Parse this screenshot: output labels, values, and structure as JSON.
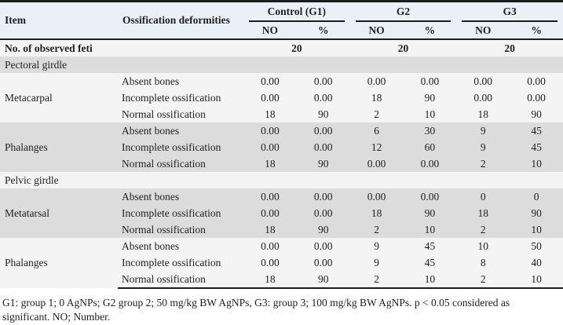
{
  "table": {
    "col_headers": {
      "item": "Item",
      "deformities": "Ossification deformities",
      "groups": [
        {
          "label": "Control (G1)",
          "sub": [
            "NO",
            "%"
          ]
        },
        {
          "label": "G2",
          "sub": [
            "NO",
            "%"
          ]
        },
        {
          "label": "G3",
          "sub": [
            "NO",
            "%"
          ]
        }
      ]
    },
    "observed_row": {
      "label": "No. of observed feti",
      "values": [
        "20",
        "20",
        "20"
      ]
    },
    "sections": [
      {
        "title": "Pectoral girdle",
        "items": [
          {
            "name": "Metacarpal",
            "rows": [
              {
                "deformity": "Absent bones",
                "values": [
                  "0.00",
                  "0.00",
                  "0.00",
                  "0.00",
                  "0.00",
                  "0.00"
                ]
              },
              {
                "deformity": "Incomplete ossification",
                "values": [
                  "0.00",
                  "0.00",
                  "18",
                  "90",
                  "0.00",
                  "0.00"
                ]
              },
              {
                "deformity": "Normal ossification",
                "values": [
                  "18",
                  "90",
                  "2",
                  "10",
                  "18",
                  "90"
                ]
              }
            ]
          },
          {
            "name": "Phalanges",
            "rows": [
              {
                "deformity": "Absent bones",
                "values": [
                  "0.00",
                  "0.00",
                  "6",
                  "30",
                  "9",
                  "45"
                ]
              },
              {
                "deformity": "Incomplete ossification",
                "values": [
                  "0.00",
                  "0.00",
                  "12",
                  "60",
                  "9",
                  "45"
                ]
              },
              {
                "deformity": "Normal ossification",
                "values": [
                  "18",
                  "90",
                  "0.00",
                  "0.00",
                  "2",
                  "10"
                ]
              }
            ]
          }
        ]
      },
      {
        "title": "Pelvic girdle",
        "items": [
          {
            "name": "Metatarsal",
            "rows": [
              {
                "deformity": "Absent bones",
                "values": [
                  "0.00",
                  "0.00",
                  "0.00",
                  "0.00",
                  "0",
                  "0"
                ]
              },
              {
                "deformity": "Incomplete ossification",
                "values": [
                  "0.00",
                  "0.00",
                  "18",
                  "90",
                  "18",
                  "90"
                ]
              },
              {
                "deformity": "Normal ossification",
                "values": [
                  "18",
                  "90",
                  "2",
                  "10",
                  "2",
                  "10"
                ]
              }
            ]
          },
          {
            "name": "Phalanges",
            "rows": [
              {
                "deformity": "Absent bones",
                "values": [
                  "0.00",
                  "0.00",
                  "9",
                  "45",
                  "10",
                  "50"
                ]
              },
              {
                "deformity": "Incomplete ossification",
                "values": [
                  "0.00",
                  "0.00",
                  "9",
                  "45",
                  "8",
                  "40"
                ]
              },
              {
                "deformity": "Normal ossification",
                "values": [
                  "18",
                  "90",
                  "2",
                  "10",
                  "2",
                  "10"
                ]
              }
            ]
          }
        ]
      }
    ],
    "footnote": "G1: group 1; 0 AgNPs; G2 group 2; 50 mg/kg BW AgNPs, G3: group 3; 100 mg/kg BW AgNPs. p < 0.05 considered as significant. NO; Number."
  },
  "colors": {
    "header_bg": "#e9f0f8",
    "band_gray": "#dcdcdc",
    "band_light": "#f4f4f4",
    "border": "#1c1c1c"
  }
}
